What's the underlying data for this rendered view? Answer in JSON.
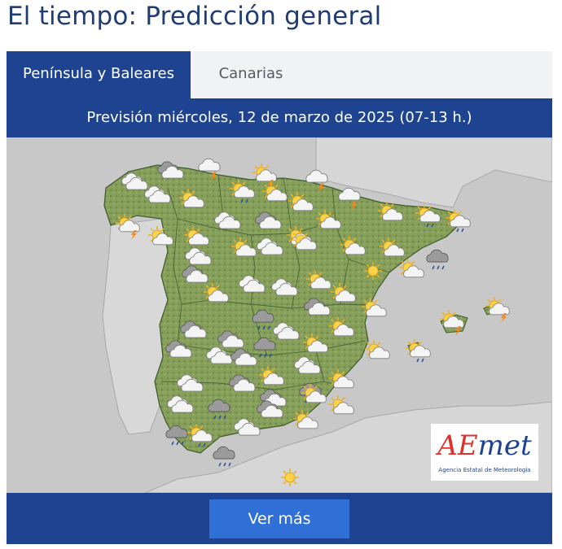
{
  "page": {
    "title": "El tiempo: Predicción general"
  },
  "tabs": [
    {
      "label": "Península y Baleares",
      "active": true
    },
    {
      "label": "Canarias",
      "active": false
    }
  ],
  "forecast": {
    "header": "Previsión miércoles, 12 de marzo de 2025 (07-13 h.)"
  },
  "logo": {
    "wordmark_a": "AE",
    "wordmark_b": "met",
    "subtitle": "Agencia Estatal de Meteorología"
  },
  "actions": {
    "more_label": "Ver más"
  },
  "colors": {
    "brand_blue": "#1e4390",
    "button_blue": "#2f6fd6",
    "land_green": "#7f9a55",
    "sea_gray": "#c8c8c8"
  },
  "map_icons": [
    {
      "type": "cloudy"
    },
    {
      "type": "overcast"
    },
    {
      "type": "storm"
    },
    {
      "type": "storm-sun"
    },
    {
      "type": "storm"
    },
    {
      "type": "cloudy"
    },
    {
      "type": "partly-cloudy"
    },
    {
      "type": "rain-sun"
    },
    {
      "type": "partly-cloudy"
    },
    {
      "type": "partly-cloudy"
    },
    {
      "type": "storm"
    },
    {
      "type": "partly-cloudy"
    },
    {
      "type": "rain-sun"
    },
    {
      "type": "rain-sun"
    },
    {
      "type": "storm-sun"
    },
    {
      "type": "partly-cloudy"
    },
    {
      "type": "partly-cloudy"
    },
    {
      "type": "cloudy"
    },
    {
      "type": "overcast"
    },
    {
      "type": "partly-cloudy"
    },
    {
      "type": "partly-cloudy"
    },
    {
      "type": "cloudy"
    },
    {
      "type": "partly-cloudy"
    },
    {
      "type": "cloudy"
    },
    {
      "type": "partly-cloudy"
    },
    {
      "type": "partly-cloudy"
    },
    {
      "type": "partly-cloudy"
    },
    {
      "type": "rain-cloud"
    },
    {
      "type": "overcast"
    },
    {
      "type": "sunny"
    },
    {
      "type": "partly-cloudy"
    },
    {
      "type": "cloudy"
    },
    {
      "type": "cloudy"
    },
    {
      "type": "partly-cloudy"
    },
    {
      "type": "partly-cloudy"
    },
    {
      "type": "partly-cloudy"
    },
    {
      "type": "rain-cloud"
    },
    {
      "type": "overcast"
    },
    {
      "type": "partly-cloudy"
    },
    {
      "type": "partly-cloudy"
    },
    {
      "type": "overcast"
    },
    {
      "type": "overcast"
    },
    {
      "type": "rain-cloud"
    },
    {
      "type": "cloudy"
    },
    {
      "type": "partly-cloudy"
    },
    {
      "type": "storm-sun"
    },
    {
      "type": "storm-sun"
    },
    {
      "type": "overcast"
    },
    {
      "type": "cloudy"
    },
    {
      "type": "overcast"
    },
    {
      "type": "cloudy"
    },
    {
      "type": "overcast"
    },
    {
      "type": "partly-cloudy"
    },
    {
      "type": "partly-cloudy"
    },
    {
      "type": "rain-sun"
    },
    {
      "type": "cloudy"
    },
    {
      "type": "overcast"
    },
    {
      "type": "rain-cloud"
    },
    {
      "type": "partly-cloudy"
    },
    {
      "type": "cloudy"
    },
    {
      "type": "rain-cloud"
    },
    {
      "type": "cloudy"
    },
    {
      "type": "overcast"
    },
    {
      "type": "partly-cloudy"
    },
    {
      "type": "partly-cloudy"
    },
    {
      "type": "partly-cloudy"
    },
    {
      "type": "rain-cloud"
    },
    {
      "type": "rain-sun"
    },
    {
      "type": "rain-cloud"
    },
    {
      "type": "sunny"
    }
  ]
}
